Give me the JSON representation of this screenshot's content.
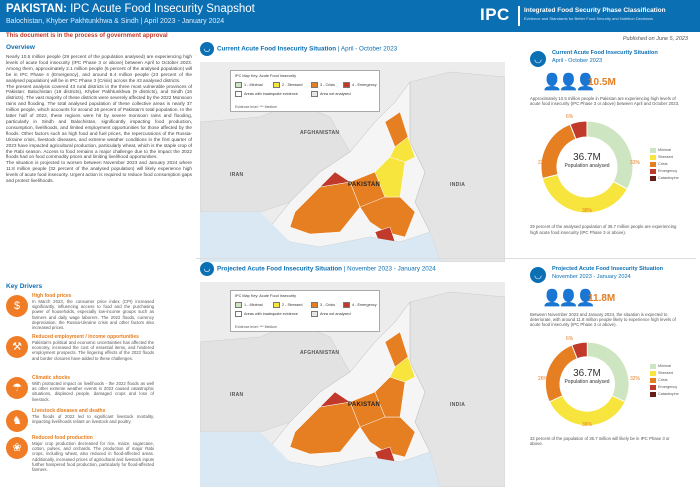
{
  "header": {
    "country": "PAKISTAN:",
    "title": "IPC Acute Food Insecurity Snapshot",
    "subtitle": "Balochistan, Khyber Pakhtunkhwa & Sindh | April 2023 - January 2024",
    "logo_short": "IPC",
    "logo_full": "Integrated Food Security Phase Classification",
    "logo_tag": "Evidence and Standards for Better Food Security and Nutrition Decisions"
  },
  "notice": "This document is in the process of government approval",
  "published": "Published on June 5, 2023",
  "overview": {
    "heading": "Overview",
    "paragraphs": [
      "Nearly 10.5 million people (29 percent of the population analysed) are experiencing high levels of acute food insecurity (IPC Phase 3 or above) between April to October 2023. Among them, approximately 2.1 million people (6 percent of the analysed population) will be in IPC Phase 4 (Emergency), and around 8.4 million people (23 percent of the analysed population) will be in IPC Phase 3 (Crisis) across the 43 analysed districts.",
      "The present analysis covered 43 rural districts in the three most vulnerable provinces of Pakistan: Balochistan (18 districts), Khyber Pakhtunkhwa (9 districts), and Sindh (16 districts). The vast majority of these districts were severely affected by the 2022 Monsoon rains and flooding. The total analysed population of these collective areas is nearly 37 million people, which accounts for around 16 percent of Pakistan's total population. In the latter half of 2022, these regions were hit by severe monsoon rains and flooding, particularly in Sindh and Balochistan, significantly impacting food production, consumption, livelihoods, and limited employment opportunities for those affected by the floods. Other factors such as high food and fuel prices, the repercussions of the Russia-Ukraine crisis, livestock diseases, and extreme weather conditions in the first quarter of 2023 have impacted agricultural production, particularly wheat, which is the staple crop of the Rabi season. Access to food remains a major challenge due to the impact the 2022 floods had on food commodity prices and limiting livelihood opportunities.",
      "The situation is projected to worsen between November 2023 and January 2024 where 11.8 million people (32 percent of the analysed population) will likely experience high levels of acute food insecurity. Urgent action is required to reduce food consumption gaps and protect livelihoods."
    ]
  },
  "key_drivers": {
    "heading": "Key Drivers",
    "items": [
      {
        "icon": "prices-icon",
        "glyph": "$",
        "title": "High food prices",
        "text": "In March 2023, the consumer price index (CPI) increased significantly, influencing access to food and the purchasing power of households, especially low-income groups such as farmers and daily wage laborers. The 2022 floods, currency depreciation, the Russia-Ukraine crisis and other factors also increased prices."
      },
      {
        "icon": "employment-icon",
        "glyph": "⚒",
        "title": "Reduced employment / income opportunities",
        "text": "Pakistan's political and economic uncertainties has affected the economy, increased the cost of essential items, and hindered employment prospects. The lingering effects of the 2022 floods and border closures have added to these challenges."
      },
      {
        "icon": "climate-icon",
        "glyph": "☂",
        "title": "Climatic shocks",
        "text": "With protracted impact on livelihoods - the 2022 floods as well as other extreme weather events in 2023 caused catastrophic situations, displaced people, damaged crops and loss of livestock."
      },
      {
        "icon": "livestock-icon",
        "glyph": "♞",
        "title": "Livestock diseases and deaths",
        "text": "The floods of 2022 led to significant livestock mortality, impacting livelihoods reliant on livestock and poultry."
      },
      {
        "icon": "production-icon",
        "glyph": "❀",
        "title": "Reduced food production",
        "text": "Major crop production decreased for rice, maize, sugarcane, cotton, pulses, and orchards. The production of major Rabi crops, including wheat, also reduced in flood-affected areas. Additionally, increased prices of agricultural and livestock inputs further hampered food production, particularly for flood-affected farmers."
      }
    ]
  },
  "current_map": {
    "heading_bold": "Current Acute Food Insecurity Situation",
    "heading_period": "| April - October 2023",
    "legend_title": "IPC Map Key: Acute Food Insecurity",
    "legend": [
      {
        "label": "1 - Minimal",
        "color": "#cde5c1"
      },
      {
        "label": "2 - Stressed",
        "color": "#f7e43c"
      },
      {
        "label": "3 - Crisis",
        "color": "#e67e22"
      },
      {
        "label": "4 - Emergency",
        "color": "#c0392b"
      },
      {
        "label": "Areas with inadequate evidence",
        "color": "#ffffff"
      },
      {
        "label": "Area not analysed",
        "color": "#e6e6e6"
      }
    ],
    "evidence": "Evidence level: *** Medium",
    "labels": {
      "afghanistan": "AFGHANISTAN",
      "pakistan": "PAKISTAN",
      "india": "INDIA",
      "iran": "IRAN"
    }
  },
  "projected_map": {
    "heading_bold": "Projected Acute Food Insecurity Situation",
    "heading_period": "| November 2023 - January 2024",
    "legend_title": "IPC Map Key: Acute Food Insecurity",
    "legend": [
      {
        "label": "1 - Minimal",
        "color": "#cde5c1"
      },
      {
        "label": "2 - Stressed",
        "color": "#f7e43c"
      },
      {
        "label": "3 - Crisis",
        "color": "#e67e22"
      },
      {
        "label": "4 - Emergency",
        "color": "#c0392b"
      },
      {
        "label": "Areas with inadequate evidence",
        "color": "#ffffff"
      },
      {
        "label": "Area not analysed",
        "color": "#e6e6e6"
      }
    ],
    "evidence": "Evidence level: *** Medium",
    "labels": {
      "afghanistan": "AFGHANISTAN",
      "pakistan": "PAKISTAN",
      "india": "INDIA",
      "iran": "IRAN"
    }
  },
  "current_summary": {
    "title": "Current Acute Food Insecurity Situation",
    "period": "April - October 2023",
    "big_number": "10.5M",
    "description": "Approximately 10.5 million people in Pakistan are experiencing high levels of acute food insecurity (IPC Phase 3 or above) between April and October 2023.",
    "center_number": "36.7M",
    "center_label": "Population analysed",
    "slices": [
      {
        "phase": "Minimal",
        "pct": 33,
        "color": "#cde5c1"
      },
      {
        "phase": "Stressed",
        "pct": 38,
        "color": "#f7e43c"
      },
      {
        "phase": "Crisis",
        "pct": 23,
        "color": "#e67e22"
      },
      {
        "phase": "Emergency",
        "pct": 6,
        "color": "#c0392b"
      },
      {
        "phase": "Catastrophe",
        "pct": 0,
        "color": "#641e16"
      }
    ],
    "labels": [
      "33%",
      "38%",
      "23%",
      "6%"
    ],
    "note": "29 percent of the analysed population of 36.7 million people are experiencing high acute food insecurity (IPC Phase 3 or above)."
  },
  "projected_summary": {
    "title": "Projected Acute Food Insecurity Situation",
    "period": "November 2023 - January 2024",
    "big_number": "11.8M",
    "description": "Between November 2023 and January 2024, the situation is expected to deteriorate, with around 11.8 million people likely to experience high levels of acute food insecurity (IPC Phase 3 or above).",
    "center_number": "36.7M",
    "center_label": "Population analysed",
    "slices": [
      {
        "phase": "Minimal",
        "pct": 32,
        "color": "#cde5c1"
      },
      {
        "phase": "Stressed",
        "pct": 36,
        "color": "#f7e43c"
      },
      {
        "phase": "Crisis",
        "pct": 26,
        "color": "#e67e22"
      },
      {
        "phase": "Emergency",
        "pct": 6,
        "color": "#c0392b"
      },
      {
        "phase": "Catastrophe",
        "pct": 0,
        "color": "#641e16"
      }
    ],
    "labels": [
      "32%",
      "36%",
      "26%",
      "6%"
    ],
    "note": "32 percent of the population of 36.7 million will likely be in IPC Phase 3 or above."
  }
}
